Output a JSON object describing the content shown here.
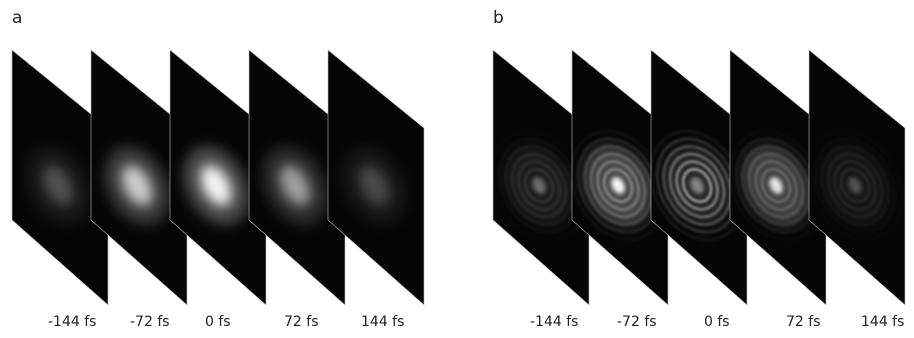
{
  "panels": [
    {
      "label": "a",
      "frames": [
        {
          "time": "-144 fs",
          "brightness": 0.25,
          "ring_strength": 0.0
        },
        {
          "time": "-72 fs",
          "brightness": 0.75,
          "ring_strength": 0.0
        },
        {
          "time": "0 fs",
          "brightness": 0.95,
          "ring_strength": 0.0
        },
        {
          "time": "72 fs",
          "brightness": 0.55,
          "ring_strength": 0.0
        },
        {
          "time": "144 fs",
          "brightness": 0.22,
          "ring_strength": 0.0
        }
      ]
    },
    {
      "label": "b",
      "frames": [
        {
          "time": "-144 fs",
          "brightness": 0.35,
          "ring_strength": 0.15
        },
        {
          "time": "-72 fs",
          "brightness": 0.95,
          "ring_strength": 0.55
        },
        {
          "time": "0 fs",
          "brightness": 0.45,
          "ring_strength": 0.85
        },
        {
          "time": "72 fs",
          "brightness": 0.85,
          "ring_strength": 0.35
        },
        {
          "time": "144 fs",
          "brightness": 0.25,
          "ring_strength": 0.12
        }
      ]
    }
  ]
}
